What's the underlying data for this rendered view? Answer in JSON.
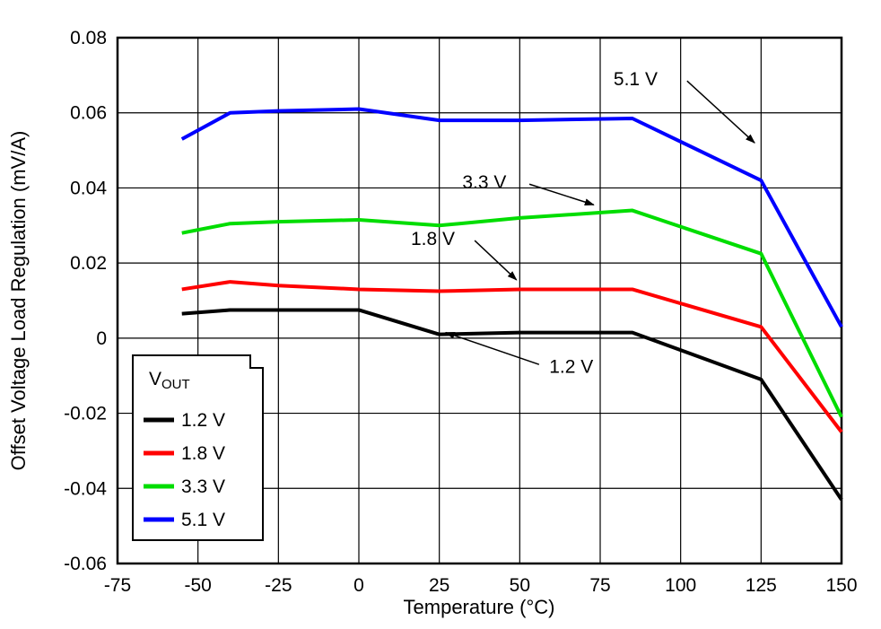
{
  "chart_data": {
    "type": "line",
    "title": "",
    "xlabel": "Temperature (°C)",
    "ylabel": "Offset Voltage Load Regulation (mV/A)",
    "xlim": [
      -75,
      150
    ],
    "ylim": [
      -0.06,
      0.08
    ],
    "grid": true,
    "x_ticks": [
      -75,
      -50,
      -25,
      0,
      25,
      50,
      75,
      100,
      125,
      150
    ],
    "x_tick_labels": [
      "-75",
      "-50",
      "-25",
      "0",
      "25",
      "50",
      "75",
      "100",
      "125",
      "150"
    ],
    "y_ticks": [
      -0.06,
      -0.04,
      -0.02,
      0,
      0.02,
      0.04,
      0.06,
      0.08
    ],
    "y_tick_labels": [
      "-0.06",
      "-0.04",
      "-0.02",
      "0",
      "0.02",
      "0.04",
      "0.06",
      "0.08"
    ],
    "x": [
      -55,
      -40,
      -25,
      0,
      25,
      50,
      85,
      125,
      150
    ],
    "series": [
      {
        "name": "1.2 V",
        "color": "#000000",
        "values": [
          0.0065,
          0.0075,
          0.0075,
          0.0075,
          0.001,
          0.0015,
          0.0015,
          -0.011,
          -0.043
        ]
      },
      {
        "name": "1.8 V",
        "color": "#ff0000",
        "values": [
          0.013,
          0.015,
          0.014,
          0.013,
          0.0125,
          0.013,
          0.013,
          0.003,
          -0.025
        ]
      },
      {
        "name": "3.3 V",
        "color": "#00dd00",
        "values": [
          0.028,
          0.0305,
          0.031,
          0.0315,
          0.03,
          0.032,
          0.034,
          0.0225,
          -0.021
        ]
      },
      {
        "name": "5.1 V",
        "color": "#0000ff",
        "values": [
          0.053,
          0.06,
          0.0605,
          0.061,
          0.058,
          0.058,
          0.0585,
          0.042,
          0.003
        ]
      }
    ],
    "legend": {
      "position": "bottom-left",
      "title_main": "V",
      "title_sub": "OUT",
      "items": [
        "1.2 V",
        "1.8 V",
        "3.3 V",
        "5.1 V"
      ]
    },
    "annotations": [
      {
        "text": "5.1 V",
        "label_x": 86,
        "label_y": 0.069,
        "arrow": {
          "x1": 102,
          "y1": 0.0685,
          "x2": 123,
          "y2": 0.052
        }
      },
      {
        "text": "3.3 V",
        "label_x": 39,
        "label_y": 0.0415,
        "arrow": {
          "x1": 53,
          "y1": 0.041,
          "x2": 73,
          "y2": 0.0355
        }
      },
      {
        "text": "1.8 V",
        "label_x": 23,
        "label_y": 0.0265,
        "arrow": {
          "x1": 36,
          "y1": 0.026,
          "x2": 49,
          "y2": 0.0155
        }
      },
      {
        "text": "1.2 V",
        "label_x": 66,
        "label_y": -0.0075,
        "arrow": {
          "x1": 56,
          "y1": -0.007,
          "x2": 27,
          "y2": 0.0015
        }
      }
    ]
  }
}
